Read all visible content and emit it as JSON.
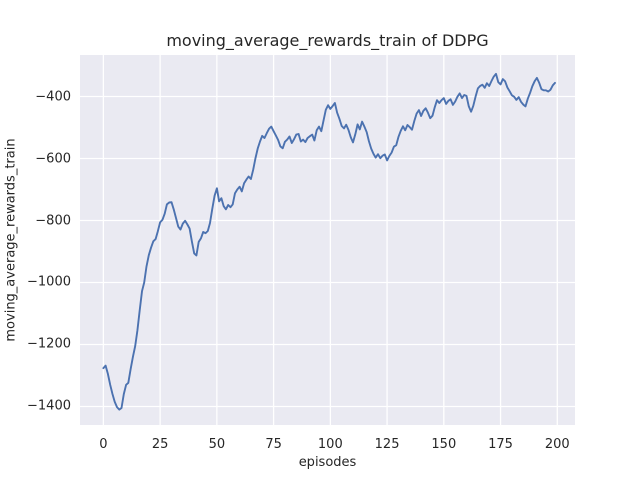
{
  "figure": {
    "title": "moving_average_rewards_train of DDPG",
    "xlabel": "episodes",
    "ylabel": "moving_average_rewards_train"
  },
  "style": {
    "line_color": "#4C72B0",
    "axes_background": "#EAEAF2",
    "grid_color": "#FFFFFF",
    "text_color": "#262626",
    "figure_background": "#FFFFFF",
    "line_width": 1.9,
    "grid_width": 1.3
  },
  "chart_data": {
    "type": "line",
    "title": "moving_average_rewards_train of DDPG",
    "xlabel": "episodes",
    "ylabel": "moving_average_rewards_train",
    "grid": true,
    "legend_visible": false,
    "xlim": [
      -10.3,
      207.8
    ],
    "ylim": [
      -1459.7,
      -266.1
    ],
    "x_ticks": [
      {
        "v": 0,
        "label": "0"
      },
      {
        "v": 25,
        "label": "25"
      },
      {
        "v": 50,
        "label": "50"
      },
      {
        "v": 75,
        "label": "75"
      },
      {
        "v": 100,
        "label": "100"
      },
      {
        "v": 125,
        "label": "125"
      },
      {
        "v": 150,
        "label": "150"
      },
      {
        "v": 175,
        "label": "175"
      },
      {
        "v": 200,
        "label": "200"
      }
    ],
    "y_ticks": [
      {
        "v": -400,
        "label": "−400"
      },
      {
        "v": -600,
        "label": "−600"
      },
      {
        "v": -800,
        "label": "−800"
      },
      {
        "v": -1000,
        "label": "−1000"
      },
      {
        "v": -1200,
        "label": "−1200"
      },
      {
        "v": -1400,
        "label": "−1400"
      }
    ],
    "series": [
      {
        "name": "moving_average_rewards_train",
        "x_start": 0,
        "x_step": 1,
        "values": [
          -1276,
          -1268,
          -1295,
          -1330,
          -1360,
          -1385,
          -1402,
          -1410,
          -1405,
          -1360,
          -1330,
          -1324,
          -1280,
          -1240,
          -1205,
          -1155,
          -1090,
          -1028,
          -1000,
          -948,
          -912,
          -888,
          -867,
          -860,
          -835,
          -806,
          -798,
          -778,
          -748,
          -742,
          -741,
          -764,
          -792,
          -820,
          -829,
          -810,
          -801,
          -813,
          -826,
          -868,
          -906,
          -913,
          -869,
          -857,
          -837,
          -841,
          -834,
          -808,
          -762,
          -720,
          -696,
          -738,
          -728,
          -754,
          -764,
          -750,
          -757,
          -748,
          -712,
          -700,
          -691,
          -706,
          -680,
          -668,
          -658,
          -666,
          -636,
          -600,
          -568,
          -545,
          -527,
          -534,
          -518,
          -504,
          -497,
          -512,
          -526,
          -540,
          -561,
          -567,
          -546,
          -539,
          -529,
          -550,
          -538,
          -523,
          -521,
          -545,
          -539,
          -547,
          -534,
          -528,
          -523,
          -542,
          -509,
          -497,
          -512,
          -478,
          -443,
          -428,
          -440,
          -431,
          -421,
          -452,
          -472,
          -495,
          -503,
          -491,
          -508,
          -532,
          -548,
          -522,
          -490,
          -506,
          -481,
          -497,
          -515,
          -544,
          -568,
          -585,
          -597,
          -586,
          -599,
          -591,
          -587,
          -606,
          -592,
          -581,
          -562,
          -557,
          -531,
          -511,
          -496,
          -509,
          -492,
          -499,
          -507,
          -479,
          -455,
          -444,
          -463,
          -446,
          -438,
          -452,
          -470,
          -462,
          -435,
          -412,
          -421,
          -412,
          -405,
          -424,
          -414,
          -409,
          -427,
          -416,
          -401,
          -390,
          -405,
          -395,
          -398,
          -432,
          -449,
          -430,
          -400,
          -374,
          -366,
          -362,
          -372,
          -357,
          -366,
          -350,
          -336,
          -327,
          -354,
          -361,
          -344,
          -351,
          -371,
          -383,
          -396,
          -401,
          -411,
          -402,
          -417,
          -426,
          -432,
          -407,
          -388,
          -367,
          -351,
          -340,
          -355,
          -376,
          -380,
          -380,
          -384,
          -378,
          -364,
          -356
        ]
      }
    ]
  }
}
